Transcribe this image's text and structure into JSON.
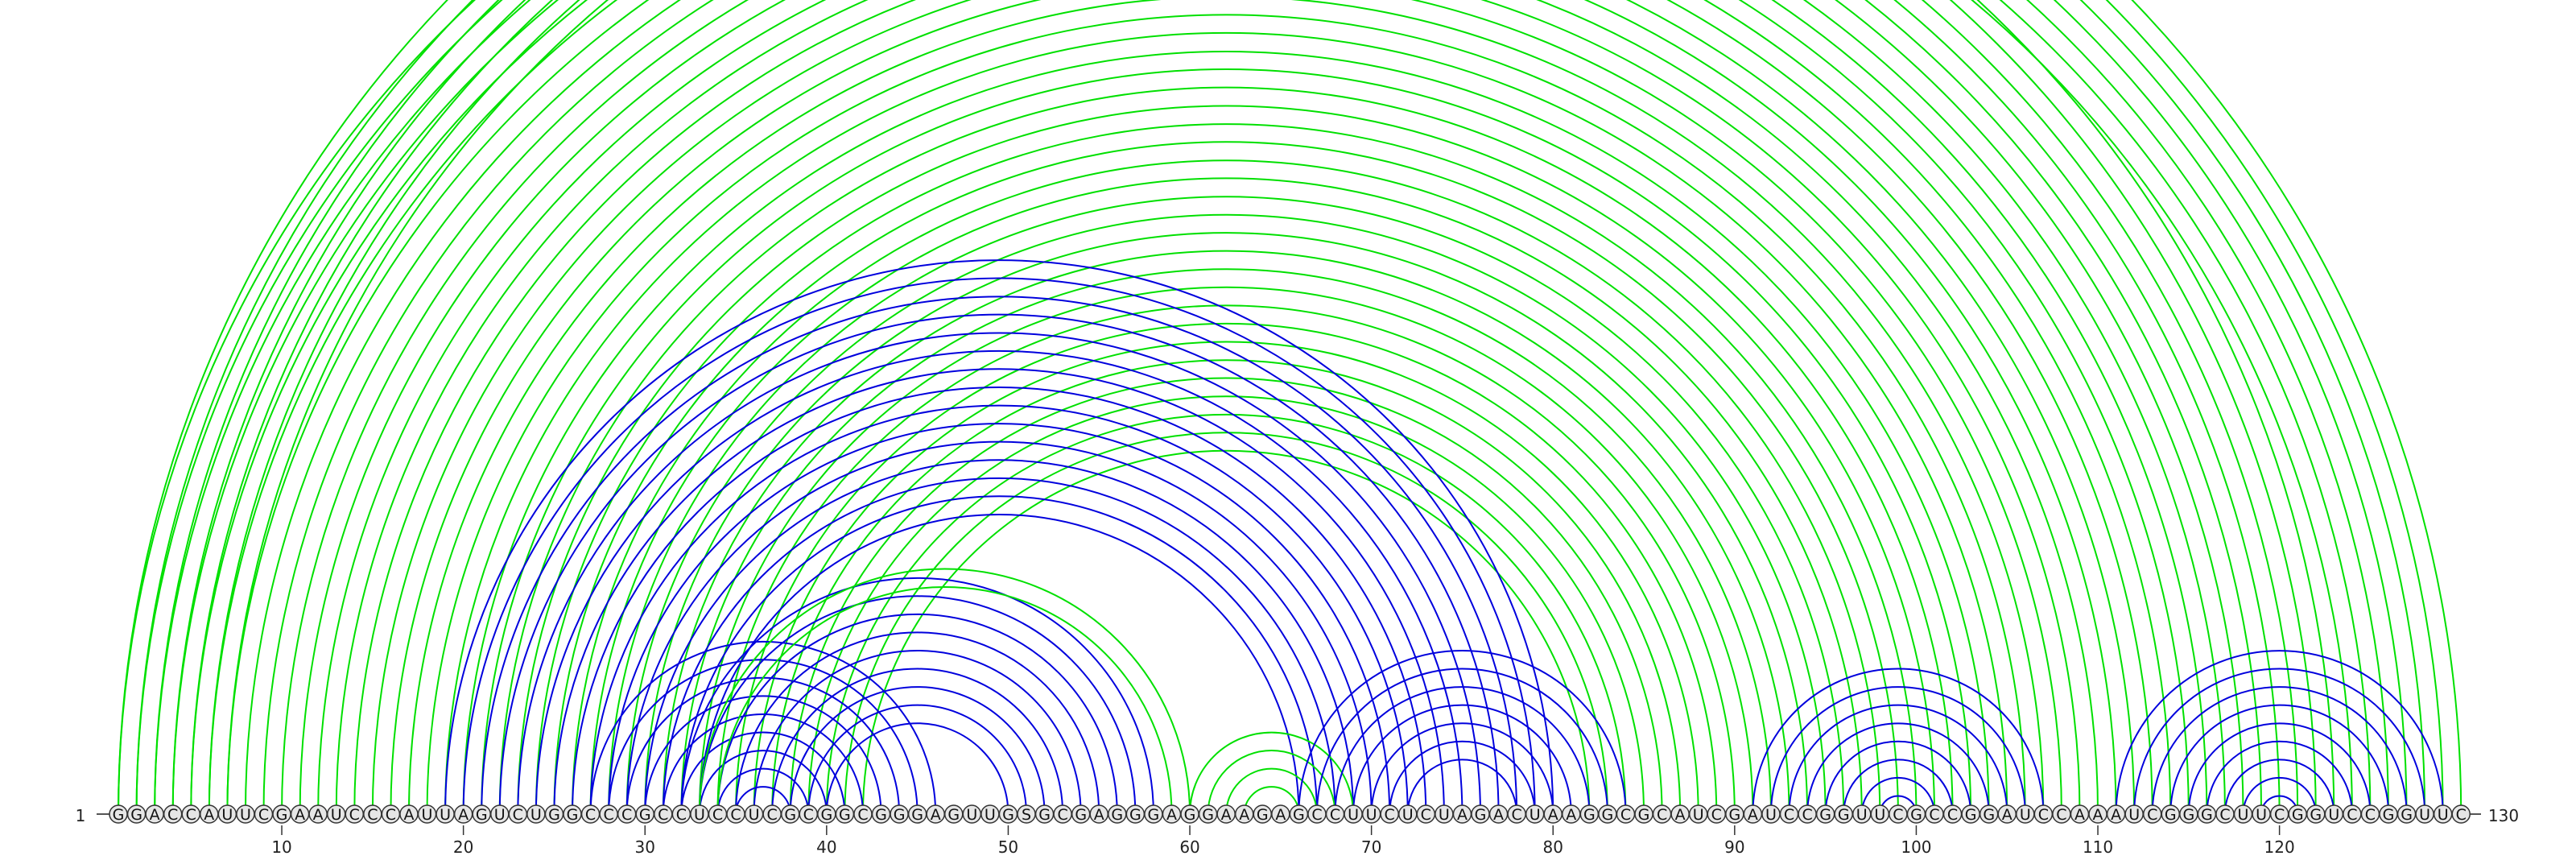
{
  "sequence": "GGACCAUUCGAAUCCCAUUAGUCUGGCCCGCCUCCUCGCGGCGGGAGUUGSGCGAGGGAGGAAGAGCCUUCUCUAGACUAAGGCGCAUCGAUCCGGUUCGCCGGAUCCAAAUCGGGCUUCGGUCCGGUUC",
  "start_label": "1",
  "end_label": "130",
  "ticks": [
    "10",
    "20",
    "30",
    "40",
    "50",
    "60",
    "70",
    "80",
    "90",
    "100",
    "110",
    "120"
  ],
  "colors": {
    "blue": "#0000dd",
    "green": "#00e000",
    "node_fill": "#e6e6e6",
    "node_stroke": "#333333"
  },
  "arc_sets": [
    {
      "name": "green-outer",
      "color": "green",
      "pairs": [
        [
          1,
          123
        ],
        [
          2,
          122
        ],
        [
          3,
          121
        ],
        [
          4,
          120
        ],
        [
          5,
          119
        ],
        [
          6,
          118
        ],
        [
          7,
          117
        ],
        [
          8,
          116
        ],
        [
          9,
          115
        ],
        [
          10,
          114
        ],
        [
          11,
          113
        ],
        [
          12,
          112
        ],
        [
          13,
          111
        ],
        [
          14,
          110
        ],
        [
          15,
          109
        ],
        [
          16,
          108
        ],
        [
          17,
          107
        ],
        [
          18,
          106
        ],
        [
          19,
          105
        ],
        [
          20,
          104
        ],
        [
          21,
          103
        ],
        [
          22,
          102
        ],
        [
          23,
          101
        ],
        [
          24,
          100
        ],
        [
          25,
          99
        ],
        [
          26,
          98
        ],
        [
          27,
          97
        ],
        [
          28,
          96
        ],
        [
          29,
          95
        ],
        [
          30,
          94
        ],
        [
          31,
          93
        ],
        [
          32,
          92
        ],
        [
          33,
          91
        ],
        [
          34,
          90
        ],
        [
          35,
          89
        ],
        [
          36,
          88
        ],
        [
          37,
          87
        ],
        [
          38,
          86
        ],
        [
          39,
          85
        ],
        [
          40,
          84
        ],
        [
          41,
          83
        ],
        [
          42,
          82
        ]
      ]
    },
    {
      "name": "green-thin-outer",
      "color": "green",
      "pairs": [
        [
          1,
          130
        ],
        [
          2,
          129
        ],
        [
          3,
          128
        ],
        [
          4,
          127
        ],
        [
          5,
          126
        ],
        [
          6,
          125
        ],
        [
          7,
          124
        ]
      ]
    },
    {
      "name": "blue-big",
      "color": "blue",
      "pairs": [
        [
          19,
          80
        ],
        [
          20,
          79
        ],
        [
          21,
          78
        ],
        [
          22,
          77
        ],
        [
          23,
          76
        ],
        [
          24,
          75
        ],
        [
          25,
          74
        ],
        [
          26,
          73
        ],
        [
          27,
          72
        ],
        [
          28,
          71
        ],
        [
          29,
          70
        ],
        [
          30,
          69
        ],
        [
          31,
          68
        ],
        [
          32,
          67
        ],
        [
          33,
          66
        ]
      ]
    },
    {
      "name": "blue-left-helix",
      "color": "blue",
      "pairs": [
        [
          27,
          46
        ],
        [
          28,
          45
        ],
        [
          29,
          44
        ],
        [
          30,
          43
        ],
        [
          31,
          42
        ],
        [
          32,
          41
        ],
        [
          33,
          40
        ],
        [
          34,
          39
        ],
        [
          35,
          38
        ]
      ]
    },
    {
      "name": "blue-mid-helix",
      "color": "blue",
      "pairs": [
        [
          32,
          58
        ],
        [
          33,
          57
        ],
        [
          34,
          56
        ],
        [
          35,
          55
        ],
        [
          36,
          54
        ],
        [
          37,
          53
        ],
        [
          38,
          52
        ],
        [
          39,
          51
        ],
        [
          40,
          50
        ]
      ]
    },
    {
      "name": "green-mid",
      "color": "green",
      "pairs": [
        [
          33,
          60
        ],
        [
          34,
          59
        ]
      ]
    },
    {
      "name": "green-small",
      "color": "green",
      "pairs": [
        [
          60,
          69
        ],
        [
          61,
          68
        ],
        [
          62,
          67
        ],
        [
          63,
          66
        ]
      ]
    },
    {
      "name": "blue-right-helix",
      "color": "blue",
      "pairs": [
        [
          66,
          84
        ],
        [
          67,
          83
        ],
        [
          68,
          82
        ],
        [
          69,
          81
        ],
        [
          70,
          80
        ],
        [
          71,
          79
        ],
        [
          72,
          78
        ]
      ]
    },
    {
      "name": "blue-hairpin-1",
      "color": "blue",
      "pairs": [
        [
          91,
          107
        ],
        [
          92,
          106
        ],
        [
          93,
          105
        ],
        [
          94,
          104
        ],
        [
          95,
          103
        ],
        [
          96,
          102
        ],
        [
          97,
          101
        ],
        [
          98,
          100
        ]
      ]
    },
    {
      "name": "blue-hairpin-2",
      "color": "blue",
      "pairs": [
        [
          111,
          129
        ],
        [
          112,
          128
        ],
        [
          113,
          127
        ],
        [
          114,
          126
        ],
        [
          115,
          125
        ],
        [
          116,
          124
        ],
        [
          117,
          123
        ],
        [
          118,
          122
        ],
        [
          119,
          121
        ]
      ]
    }
  ]
}
